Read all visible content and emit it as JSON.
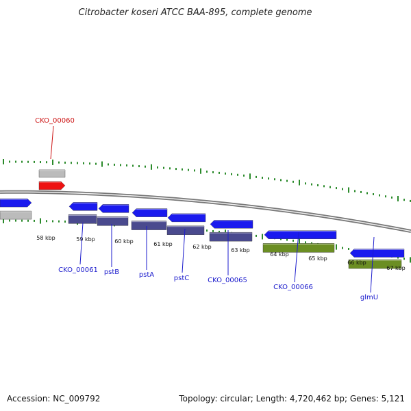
{
  "title": "Citrobacter koseri ATCC BAA-895, complete genome",
  "footer": {
    "accession": "Accession: NC_009792",
    "summary": "Topology: circular; Length: 4,720,462 bp; Genes: 5,121"
  },
  "colors": {
    "cds_forward": "#1a1aee",
    "cds_reverse": "#1a1aee",
    "highlight": "#ee1111",
    "gene_grey": "#bbbbbb",
    "protein_purple": "#4a4a8e",
    "protein_green": "#6b8e23",
    "tick_green": "#2a8a2a",
    "label_blue": "#1a1acc",
    "label_red": "#cc1111"
  },
  "kbp_labels": [
    "58 kbp",
    "59 kbp",
    "60 kbp",
    "61 kbp",
    "62 kbp",
    "63 kbp",
    "64 kbp",
    "65 kbp",
    "66 kbp",
    "67 kbp"
  ],
  "gene_labels": [
    {
      "name": "CKO_00060",
      "color": "red"
    },
    {
      "name": "CKO_00061",
      "color": "blue"
    },
    {
      "name": "pstB",
      "color": "blue"
    },
    {
      "name": "pstA",
      "color": "blue"
    },
    {
      "name": "pstC",
      "color": "blue"
    },
    {
      "name": "CKO_00065",
      "color": "blue"
    },
    {
      "name": "CKO_00066",
      "color": "blue"
    },
    {
      "name": "glmU",
      "color": "blue"
    }
  ]
}
